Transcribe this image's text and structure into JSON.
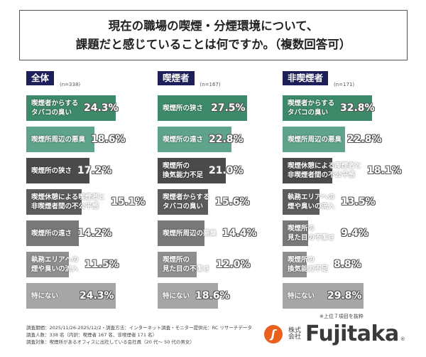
{
  "title_lines": [
    "現在の職場の喫煙・分煙環境について、",
    "課題だと感じていることは何ですか。（複数回答可）"
  ],
  "colors": {
    "header": "#1c1f5a",
    "bars": [
      "#3d8a6a",
      "#5fa38a",
      "#4a4a4a",
      "#5c5c5c",
      "#787878",
      "#8f8f8f",
      "#a6a6a6"
    ]
  },
  "chart_data": [
    {
      "type": "bar",
      "orientation": "horizontal",
      "title": "全体",
      "n": "(n=338)",
      "unit": "%",
      "categories": [
        "喫煙者からする\nタバコの臭い",
        "喫煙所周辺の悪臭",
        "喫煙所の狭さ",
        "喫煙休憩による喫煙者と\n非喫煙者間の不公平感",
        "喫煙所の遠さ",
        "執務エリアへの\n煙や臭いの流入",
        "特にない"
      ],
      "values": [
        24.3,
        18.6,
        17.2,
        15.1,
        14.2,
        11.5,
        24.3
      ],
      "labels": [
        "24.3%",
        "18.6%",
        "17.2%",
        "15.1%",
        "14.2%",
        "11.5%",
        "24.3%"
      ]
    },
    {
      "type": "bar",
      "orientation": "horizontal",
      "title": "喫煙者",
      "n": "(n=167)",
      "unit": "%",
      "categories": [
        "喫煙所の狭さ",
        "喫煙所の遠さ",
        "喫煙所の\n換気能力不足",
        "喫煙者からする\nタバコの臭い",
        "喫煙所周辺の悪臭",
        "喫煙所の\n見た目の不潔さ",
        "特にない"
      ],
      "values": [
        27.5,
        22.8,
        21.0,
        15.6,
        14.4,
        12.0,
        18.6
      ],
      "labels": [
        "27.5%",
        "22.8%",
        "21.0%",
        "15.6%",
        "14.4%",
        "12.0%",
        "18.6%"
      ]
    },
    {
      "type": "bar",
      "orientation": "horizontal",
      "title": "非喫煙者",
      "n": "(n=171)",
      "unit": "%",
      "categories": [
        "喫煙者からする\nタバコの臭い",
        "喫煙所周辺の悪臭",
        "喫煙休憩による喫煙者と\n非喫煙者間の不公平感",
        "執務エリアへの\n煙や臭いの流入",
        "喫煙所の\n見た目の不潔さ",
        "喫煙所の\n換気能力不足",
        "特にない"
      ],
      "values": [
        32.8,
        22.8,
        18.1,
        13.5,
        9.4,
        8.8,
        29.8
      ],
      "labels": [
        "32.8%",
        "22.8%",
        "18.1%",
        "13.5%",
        "9.4%",
        "8.8%",
        "29.8%"
      ]
    }
  ],
  "note": "※上位７項目を抜粋",
  "footer": [
    "調査期間：2025/11/26-2025/12/2・調査方法：インターネット調査・モニター提供元：RC リサーチデータ",
    "調査人数：338 名（内訳：喫煙者 167 名、非喫煙者 171 名）",
    "調査対象：喫煙所があるオフィスに出社している会社員（20 代〜 50 代の男女）"
  ],
  "logo": {
    "kabushiki": "株式会社",
    "brand": "Fujitaka",
    "reg": "®"
  }
}
